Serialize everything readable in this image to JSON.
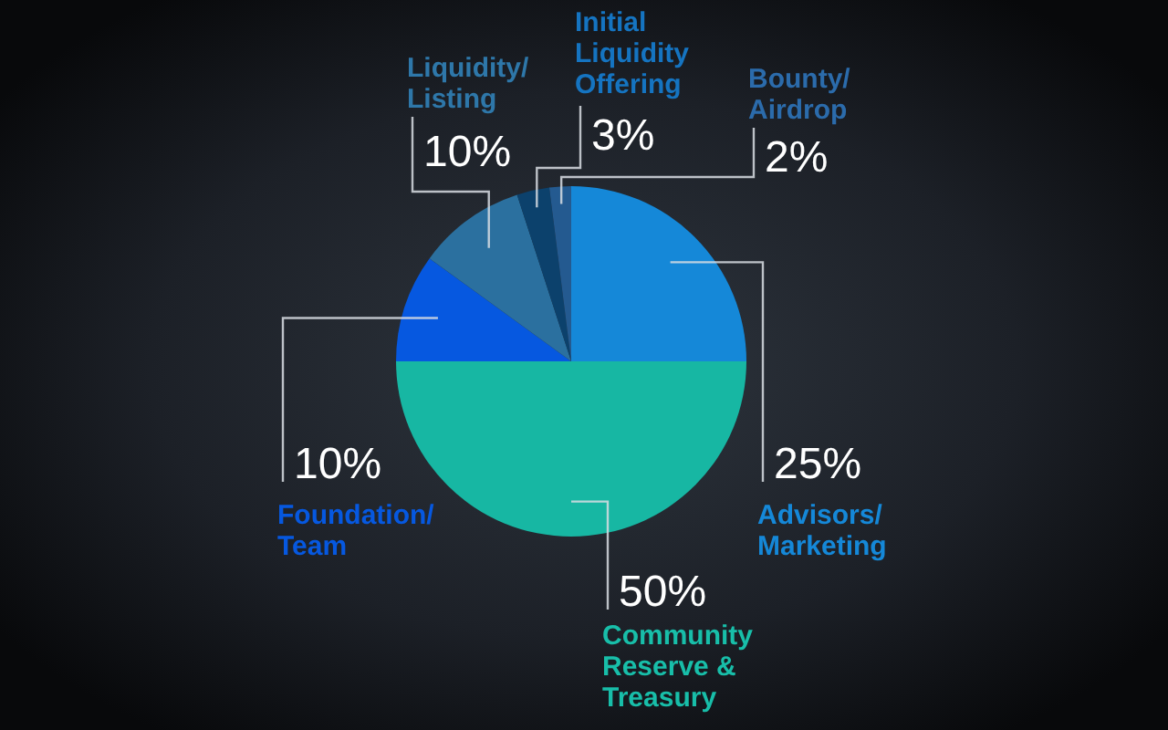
{
  "chart_data": {
    "type": "pie",
    "categories": [
      "Advisors/Marketing",
      "Community Reserve & Treasury",
      "Foundation/Team",
      "Liquidity/Listing",
      "Initial Liquidity Offering",
      "Bounty/Airdrop"
    ],
    "values": [
      25,
      50,
      10,
      10,
      3,
      2
    ],
    "colors": [
      "#1588d8",
      "#17b7a3",
      "#0658e0",
      "#2b709f",
      "#0c416c",
      "#245a90"
    ],
    "value_labels": [
      "25%",
      "50%",
      "10%",
      "10%",
      "3%",
      "2%"
    ]
  }
}
